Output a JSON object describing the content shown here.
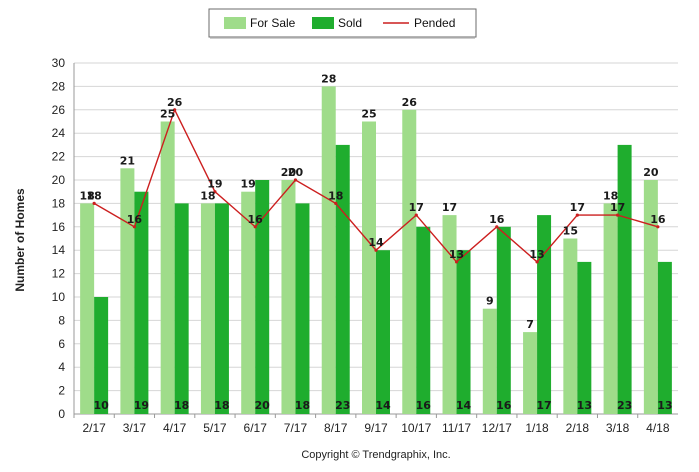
{
  "chart_data": {
    "type": "bar",
    "categories": [
      "2/17",
      "3/17",
      "4/17",
      "5/17",
      "6/17",
      "7/17",
      "8/17",
      "9/17",
      "10/17",
      "11/17",
      "12/17",
      "1/18",
      "2/18",
      "3/18",
      "4/18"
    ],
    "series": [
      {
        "name": "For Sale",
        "kind": "bar",
        "color": "#9fdc8a",
        "values": [
          18,
          21,
          25,
          18,
          19,
          20,
          28,
          25,
          26,
          17,
          9,
          7,
          15,
          18,
          20
        ]
      },
      {
        "name": "Sold",
        "kind": "bar",
        "color": "#1fad2e",
        "values": [
          10,
          19,
          18,
          18,
          20,
          18,
          23,
          14,
          16,
          14,
          16,
          17,
          13,
          23,
          13
        ]
      },
      {
        "name": "Pended",
        "kind": "line",
        "color": "#cc1f1f",
        "values": [
          18,
          16,
          26,
          19,
          16,
          20,
          18,
          14,
          17,
          13,
          16,
          13,
          17,
          17,
          16
        ]
      }
    ],
    "title": "",
    "xlabel": "",
    "ylabel": "Number of Homes",
    "ylim": [
      0,
      30
    ],
    "yticks": [
      0,
      2,
      4,
      6,
      8,
      10,
      12,
      14,
      16,
      18,
      20,
      22,
      24,
      26,
      28,
      30
    ],
    "grid": true,
    "legend": "top-center",
    "copyright": "Copyright © Trendgraphix, Inc."
  }
}
